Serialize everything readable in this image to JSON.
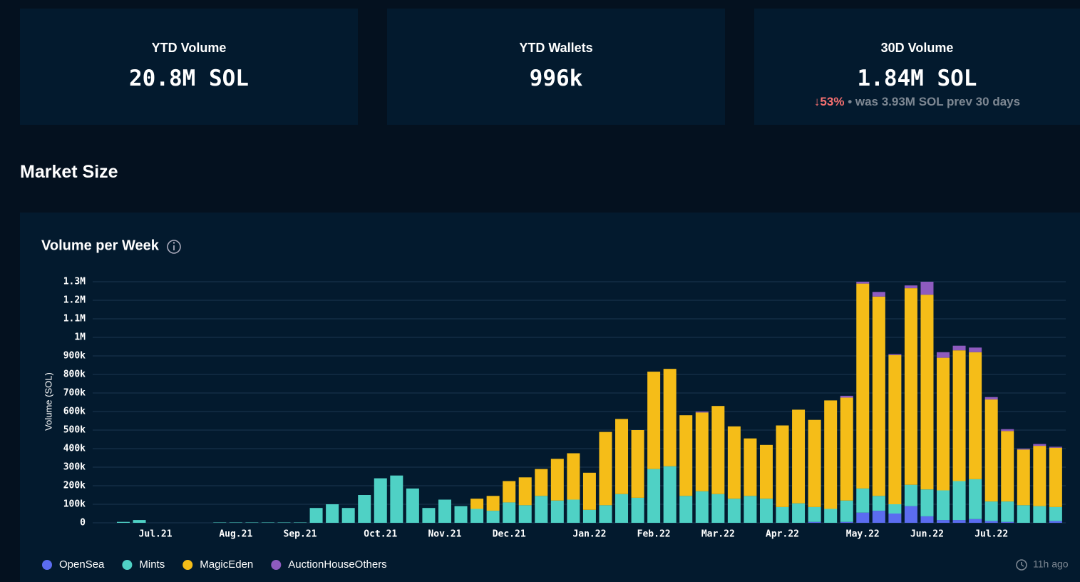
{
  "cards": [
    {
      "title": "YTD Volume",
      "value": "20.8M SOL"
    },
    {
      "title": "YTD Wallets",
      "value": "996k"
    },
    {
      "title": "30D Volume",
      "value": "1.84M SOL",
      "change": "53%",
      "note": "• was 3.93M SOL prev 30 days"
    }
  ],
  "section_title": "Market Size",
  "updated": "11h ago",
  "chart_data": {
    "type": "bar",
    "stacked": true,
    "title": "Volume per Week",
    "y_label": "Volume (SOL)",
    "categories": [
      null,
      null,
      "Jul.21",
      null,
      null,
      null,
      null,
      "Aug.21",
      null,
      null,
      null,
      "Sep.21",
      null,
      null,
      null,
      null,
      "Oct.21",
      null,
      null,
      null,
      "Nov.21",
      null,
      null,
      null,
      "Dec.21",
      null,
      null,
      null,
      null,
      "Jan.22",
      null,
      null,
      null,
      "Feb.22",
      null,
      null,
      null,
      "Mar.22",
      null,
      null,
      null,
      "Apr.22",
      null,
      null,
      null,
      null,
      "May.22",
      null,
      null,
      null,
      "Jun.22",
      null,
      null,
      null,
      "Jul.22",
      null,
      null,
      null,
      null
    ],
    "series": [
      {
        "name": "OpenSea",
        "color": "#5b6cf0",
        "values": [
          0,
          0,
          0,
          0,
          0,
          0,
          0,
          0,
          0,
          0,
          0,
          0,
          0,
          0,
          0,
          0,
          0,
          0,
          0,
          0,
          0,
          0,
          0,
          0,
          0,
          0,
          0,
          0,
          0,
          0,
          0,
          0,
          0,
          0,
          0,
          0,
          0,
          0,
          0,
          0,
          0,
          0,
          0,
          5000,
          0,
          5000,
          55000,
          65000,
          50000,
          90000,
          35000,
          15000,
          15000,
          20000,
          10000,
          5000,
          0,
          0,
          10000
        ]
      },
      {
        "name": "Mints",
        "color": "#4fd1c5",
        "values": [
          5000,
          15000,
          0,
          0,
          0,
          0,
          2000,
          2000,
          2000,
          2000,
          2000,
          2000,
          80000,
          100000,
          80000,
          150000,
          240000,
          255000,
          185000,
          80000,
          125000,
          90000,
          75000,
          65000,
          110000,
          95000,
          145000,
          120000,
          125000,
          70000,
          95000,
          155000,
          135000,
          290000,
          305000,
          145000,
          170000,
          155000,
          130000,
          145000,
          130000,
          85000,
          105000,
          80000,
          75000,
          115000,
          130000,
          80000,
          50000,
          115000,
          145000,
          160000,
          210000,
          215000,
          105000,
          110000,
          95000,
          90000,
          75000
        ]
      },
      {
        "name": "MagicEden",
        "color": "#f5bd18",
        "values": [
          0,
          0,
          0,
          0,
          0,
          0,
          0,
          0,
          0,
          0,
          0,
          0,
          0,
          0,
          0,
          0,
          0,
          0,
          0,
          0,
          0,
          0,
          55000,
          80000,
          115000,
          150000,
          145000,
          225000,
          250000,
          200000,
          395000,
          405000,
          365000,
          525000,
          525000,
          435000,
          425000,
          475000,
          390000,
          310000,
          290000,
          440000,
          505000,
          470000,
          585000,
          555000,
          1105000,
          1075000,
          805000,
          1060000,
          1050000,
          715000,
          705000,
          685000,
          550000,
          380000,
          300000,
          325000,
          320000
        ]
      },
      {
        "name": "AuctionHouseOthers",
        "color": "#8e5bbf",
        "values": [
          0,
          0,
          0,
          0,
          0,
          0,
          0,
          0,
          0,
          0,
          0,
          0,
          0,
          0,
          0,
          0,
          0,
          0,
          0,
          0,
          0,
          0,
          0,
          0,
          0,
          0,
          0,
          0,
          0,
          0,
          0,
          0,
          0,
          0,
          0,
          0,
          5000,
          0,
          0,
          0,
          0,
          0,
          0,
          0,
          0,
          10000,
          10000,
          25000,
          5000,
          15000,
          70000,
          30000,
          25000,
          25000,
          13000,
          10000,
          5000,
          10000,
          5000
        ]
      }
    ],
    "ylim": [
      0,
      1300000
    ],
    "yticks": [
      0,
      {
        "value": 100000,
        "label": "100k"
      },
      {
        "value": 200000,
        "label": "200k"
      },
      {
        "value": 300000,
        "label": "300k"
      },
      {
        "value": 400000,
        "label": "400k"
      },
      {
        "value": 500000,
        "label": "500k"
      },
      {
        "value": 600000,
        "label": "600k"
      },
      {
        "value": 700000,
        "label": "700k"
      },
      {
        "value": 800000,
        "label": "800k"
      },
      {
        "value": 900000,
        "label": "900k"
      },
      {
        "value": 1000000,
        "label": "1M"
      },
      {
        "value": 1100000,
        "label": "1.1M"
      },
      {
        "value": 1200000,
        "label": "1.2M"
      },
      {
        "value": 1300000,
        "label": "1.3M"
      }
    ],
    "grid": true,
    "legend": "bottom-left"
  }
}
